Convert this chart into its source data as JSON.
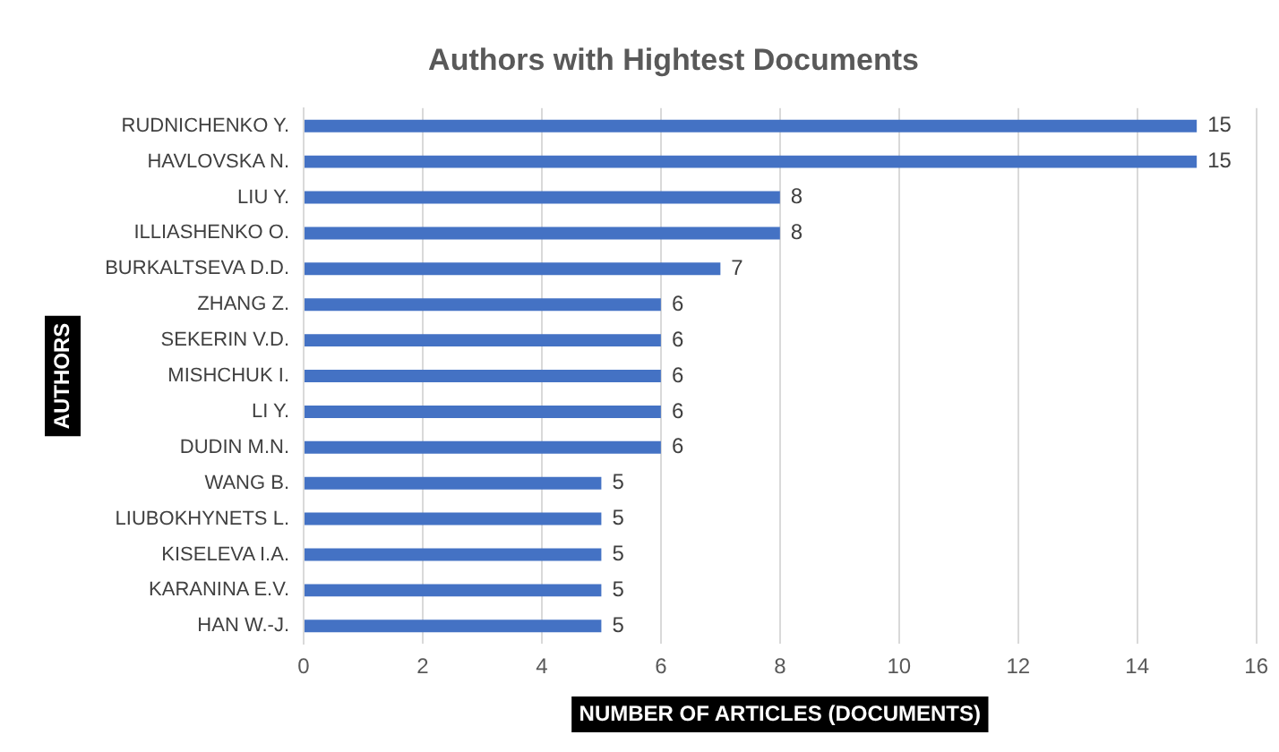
{
  "chart_data": {
    "type": "bar",
    "orientation": "horizontal",
    "title": "Authors with Hightest Documents",
    "xlabel": "NUMBER OF ARTICLES (DOCUMENTS)",
    "ylabel": "AUTHORS",
    "categories": [
      "RUDNICHENKO Y.",
      "HAVLOVSKA N.",
      "LIU Y.",
      "ILLIASHENKO O.",
      "BURKALTSEVA D.D.",
      "ZHANG Z.",
      "SEKERIN V.D.",
      "MISHCHUK I.",
      "LI Y.",
      "DUDIN M.N.",
      "WANG B.",
      "LIUBOKHYNETS L.",
      "KISELEVA I.A.",
      "KARANINA E.V.",
      "HAN W.-J."
    ],
    "values": [
      15,
      15,
      8,
      8,
      7,
      6,
      6,
      6,
      6,
      6,
      5,
      5,
      5,
      5,
      5
    ],
    "color": "#4472c4",
    "xlim": [
      0,
      16
    ],
    "xticks": [
      0,
      2,
      4,
      6,
      8,
      10,
      12,
      14,
      16
    ],
    "grid": "x",
    "data_labels": true,
    "legend": false
  }
}
